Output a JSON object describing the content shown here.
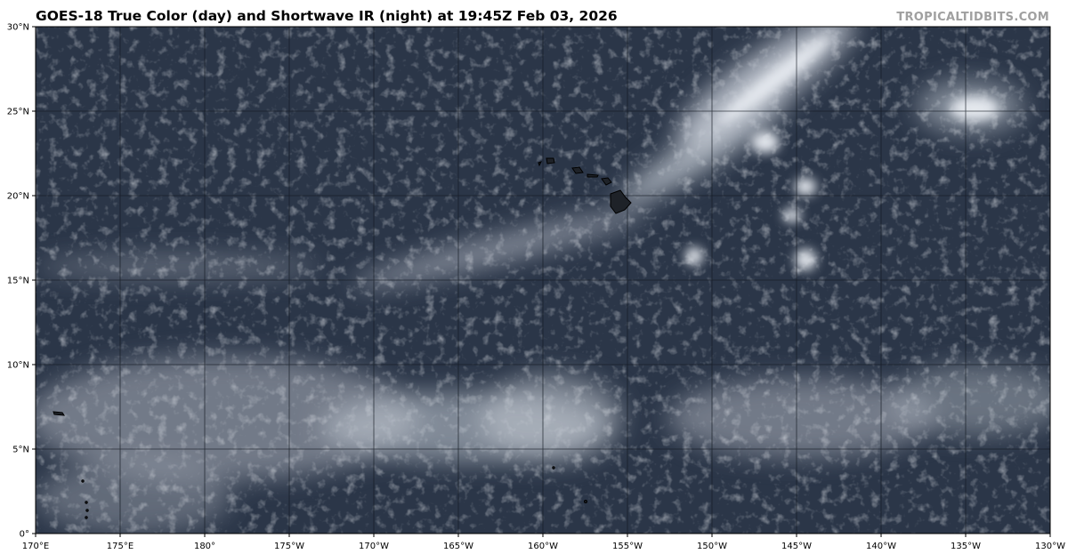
{
  "title": "GOES-18 True Color (day) and Shortwave IR (night) at 19:45Z Feb 03, 2026",
  "brand": "TROPICALTIDBITS.COM",
  "map": {
    "extent": {
      "lon_min": 170,
      "lon_max": 230,
      "lat_min": 0,
      "lat_max": 30
    },
    "grid_interval_deg": 5,
    "x_ticks": [
      "170°E",
      "175°E",
      "180°",
      "175°W",
      "170°W",
      "165°W",
      "160°W",
      "155°W",
      "150°W",
      "145°W",
      "140°W",
      "135°W",
      "130°W"
    ],
    "y_ticks": [
      "0°",
      "5°N",
      "10°N",
      "15°N",
      "20°N",
      "25°N",
      "30°N"
    ],
    "colors": {
      "ocean": "#2b3648",
      "cloud": "#d8dde4",
      "grid": "#1a1f28",
      "land": "#1e2228"
    }
  }
}
